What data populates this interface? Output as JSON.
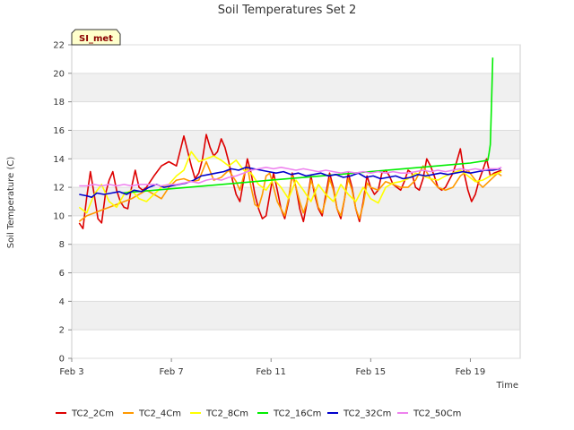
{
  "chart_data": {
    "type": "line",
    "title": "Soil Temperatures Set 2",
    "xlabel": "Time",
    "ylabel": "Soil Temperature (C)",
    "site_tag": "SI_met",
    "xlim": [
      0,
      18
    ],
    "ylim": [
      0,
      22
    ],
    "yticks": [
      0,
      2,
      4,
      6,
      8,
      10,
      12,
      14,
      16,
      18,
      20,
      22
    ],
    "xticks": [
      {
        "x": 0,
        "label": "Feb 3"
      },
      {
        "x": 4,
        "label": "Feb 7"
      },
      {
        "x": 8,
        "label": "Feb 11"
      },
      {
        "x": 12,
        "label": "Feb 15"
      },
      {
        "x": 16,
        "label": "Feb 19"
      }
    ],
    "grid": true,
    "legend_placement": "bottom",
    "series": [
      {
        "name": "TC2_2Cm",
        "color": "#dd0000",
        "x": [
          0.3,
          0.45,
          0.6,
          0.75,
          0.9,
          1.05,
          1.2,
          1.35,
          1.5,
          1.65,
          1.8,
          1.95,
          2.1,
          2.25,
          2.4,
          2.55,
          2.7,
          2.85,
          3.0,
          3.3,
          3.6,
          3.9,
          4.2,
          4.5,
          4.8,
          4.95,
          5.1,
          5.25,
          5.4,
          5.55,
          5.7,
          5.85,
          6.0,
          6.15,
          6.3,
          6.45,
          6.6,
          6.75,
          6.9,
          7.05,
          7.2,
          7.35,
          7.5,
          7.65,
          7.8,
          7.95,
          8.1,
          8.25,
          8.4,
          8.55,
          8.7,
          8.85,
          9.0,
          9.15,
          9.3,
          9.45,
          9.6,
          9.75,
          9.9,
          10.05,
          10.2,
          10.35,
          10.5,
          10.65,
          10.8,
          10.95,
          11.1,
          11.25,
          11.4,
          11.55,
          11.7,
          11.85,
          12.0,
          12.15,
          12.3,
          12.45,
          12.6,
          12.75,
          12.9,
          13.05,
          13.2,
          13.35,
          13.5,
          13.65,
          13.8,
          13.95,
          14.1,
          14.25,
          14.4,
          14.55,
          14.7,
          14.85,
          15.0,
          15.15,
          15.3,
          15.45,
          15.6,
          15.75,
          15.9,
          16.05,
          16.2,
          16.35,
          16.5,
          16.65,
          16.8,
          16.95,
          17.1,
          17.25
        ],
        "y": [
          9.5,
          9.1,
          11.3,
          13.1,
          11.5,
          9.8,
          9.5,
          11.5,
          12.5,
          13.1,
          11.8,
          11.0,
          10.6,
          10.5,
          12.0,
          13.2,
          12.0,
          11.8,
          12.0,
          12.8,
          13.5,
          13.8,
          13.5,
          15.6,
          13.5,
          12.6,
          13.0,
          14.0,
          15.7,
          14.8,
          14.2,
          14.5,
          15.4,
          14.8,
          13.8,
          12.5,
          11.5,
          11.0,
          12.5,
          14.0,
          13.0,
          11.5,
          10.5,
          9.8,
          10.0,
          11.5,
          13.0,
          11.8,
          10.5,
          9.8,
          11.0,
          13.0,
          12.0,
          10.5,
          9.6,
          11.0,
          12.8,
          11.5,
          10.5,
          10.0,
          11.5,
          13.0,
          12.0,
          10.5,
          9.8,
          11.2,
          13.0,
          12.0,
          10.5,
          9.6,
          11.0,
          12.8,
          12.0,
          11.5,
          11.8,
          13.0,
          13.2,
          12.8,
          12.2,
          12.0,
          11.8,
          12.4,
          13.2,
          13.0,
          12.0,
          11.8,
          12.6,
          14.0,
          13.5,
          12.8,
          12.0,
          11.8,
          12.0,
          12.5,
          13.0,
          13.8,
          14.7,
          13.0,
          11.8,
          11.0,
          11.5,
          12.5,
          13.2,
          14.0,
          12.8,
          13.0,
          13.1,
          13.2
        ]
      },
      {
        "name": "TC2_4Cm",
        "color": "#ff9900",
        "x": [
          0.3,
          0.6,
          0.9,
          1.2,
          1.5,
          1.8,
          2.1,
          2.4,
          2.7,
          3.0,
          3.3,
          3.6,
          3.9,
          4.2,
          4.5,
          4.8,
          5.1,
          5.4,
          5.7,
          6.0,
          6.3,
          6.6,
          6.75,
          6.9,
          7.05,
          7.2,
          7.35,
          7.5,
          7.65,
          7.8,
          7.95,
          8.1,
          8.25,
          8.4,
          8.55,
          8.7,
          8.85,
          9.0,
          9.15,
          9.3,
          9.45,
          9.6,
          9.75,
          9.9,
          10.05,
          10.2,
          10.35,
          10.5,
          10.65,
          10.8,
          10.95,
          11.1,
          11.25,
          11.4,
          11.55,
          11.7,
          11.85,
          12.0,
          12.3,
          12.6,
          12.9,
          13.2,
          13.5,
          13.8,
          14.1,
          14.4,
          14.7,
          15.0,
          15.3,
          15.6,
          15.9,
          16.2,
          16.5,
          16.8,
          17.1,
          17.25
        ],
        "y": [
          9.6,
          10.0,
          10.2,
          10.4,
          10.6,
          10.8,
          11.0,
          11.2,
          11.5,
          11.8,
          11.5,
          11.2,
          12.0,
          12.5,
          12.6,
          12.4,
          12.5,
          13.8,
          12.5,
          12.7,
          13.2,
          12.4,
          11.8,
          12.8,
          13.5,
          12.0,
          10.8,
          10.6,
          11.5,
          12.8,
          13.0,
          12.0,
          11.0,
          10.5,
          10.0,
          11.2,
          12.8,
          12.0,
          11.0,
          10.2,
          11.0,
          12.5,
          11.8,
          10.6,
          10.2,
          11.2,
          12.6,
          11.8,
          10.5,
          10.0,
          11.2,
          12.6,
          11.8,
          10.5,
          9.8,
          10.8,
          12.3,
          12.0,
          11.8,
          12.4,
          12.2,
          12.0,
          12.0,
          12.5,
          13.5,
          12.6,
          12.0,
          11.8,
          12.0,
          12.8,
          13.2,
          12.5,
          12.0,
          12.5,
          13.0,
          12.8
        ]
      },
      {
        "name": "TC2_8Cm",
        "color": "#ffff00",
        "x": [
          0.3,
          0.6,
          0.9,
          1.2,
          1.5,
          1.8,
          2.1,
          2.4,
          2.7,
          3.0,
          3.3,
          3.6,
          3.9,
          4.2,
          4.5,
          4.8,
          5.1,
          5.4,
          5.7,
          6.0,
          6.3,
          6.6,
          6.9,
          7.2,
          7.5,
          7.8,
          8.1,
          8.4,
          8.7,
          9.0,
          9.3,
          9.6,
          9.9,
          10.2,
          10.5,
          10.8,
          11.1,
          11.4,
          11.7,
          12.0,
          12.3,
          12.6,
          12.9,
          13.2,
          13.5,
          13.8,
          14.1,
          14.4,
          14.7,
          15.0,
          15.3,
          15.6,
          15.9,
          16.2,
          16.5,
          16.8,
          17.1,
          17.25
        ],
        "y": [
          10.6,
          10.2,
          11.5,
          12.2,
          11.0,
          10.6,
          11.5,
          11.8,
          11.2,
          11.0,
          11.5,
          12.0,
          12.2,
          12.8,
          13.2,
          14.5,
          13.8,
          14.0,
          14.2,
          13.9,
          13.5,
          13.9,
          13.2,
          13.0,
          12.2,
          11.8,
          12.6,
          12.0,
          11.2,
          12.5,
          11.8,
          11.0,
          12.2,
          11.5,
          11.0,
          12.2,
          11.5,
          11.0,
          12.0,
          11.2,
          10.9,
          12.0,
          12.3,
          12.4,
          12.6,
          13.0,
          12.8,
          12.6,
          12.5,
          12.8,
          13.0,
          13.2,
          12.8,
          12.4,
          12.5,
          12.8,
          13.0,
          13.1
        ]
      },
      {
        "name": "TC2_16Cm",
        "color": "#00ee00",
        "x": [
          2.0,
          4.0,
          6.0,
          8.0,
          10.0,
          12.0,
          14.0,
          16.0,
          16.7,
          16.75,
          16.8,
          16.85,
          16.9
        ],
        "y": [
          11.6,
          11.9,
          12.2,
          12.5,
          12.8,
          13.1,
          13.4,
          13.7,
          13.9,
          14.4,
          15.0,
          18.0,
          21.1
        ]
      },
      {
        "name": "TC2_32Cm",
        "color": "#0000cc",
        "x": [
          0.3,
          0.6,
          0.8,
          1.0,
          1.3,
          1.6,
          1.9,
          2.2,
          2.5,
          2.8,
          3.1,
          3.4,
          3.7,
          4.0,
          4.3,
          4.6,
          4.9,
          5.2,
          5.5,
          5.8,
          6.1,
          6.4,
          6.7,
          7.0,
          7.3,
          7.6,
          7.9,
          8.2,
          8.5,
          8.8,
          9.1,
          9.4,
          9.7,
          10.0,
          10.3,
          10.6,
          10.9,
          11.2,
          11.5,
          11.8,
          12.1,
          12.4,
          12.7,
          13.0,
          13.3,
          13.6,
          13.9,
          14.2,
          14.5,
          14.8,
          15.1,
          15.4,
          15.7,
          16.0,
          16.3,
          16.6,
          16.9,
          17.2
        ],
        "y": [
          11.5,
          11.4,
          11.3,
          11.6,
          11.5,
          11.6,
          11.7,
          11.5,
          11.8,
          11.7,
          12.0,
          12.2,
          12.0,
          12.1,
          12.2,
          12.3,
          12.5,
          12.8,
          12.9,
          13.0,
          13.1,
          13.3,
          13.2,
          13.4,
          13.3,
          13.2,
          13.1,
          13.0,
          13.1,
          12.9,
          13.0,
          12.8,
          12.9,
          13.0,
          12.8,
          12.9,
          12.7,
          12.8,
          13.0,
          12.7,
          12.8,
          12.6,
          12.7,
          12.8,
          12.6,
          12.7,
          12.9,
          12.8,
          12.9,
          13.0,
          12.9,
          13.0,
          13.1,
          13.0,
          13.1,
          13.2,
          13.2,
          13.3
        ]
      },
      {
        "name": "TC2_50Cm",
        "color": "#ee82ee",
        "x": [
          0.3,
          0.6,
          0.9,
          1.2,
          1.5,
          1.8,
          2.1,
          2.4,
          2.7,
          3.0,
          3.3,
          3.6,
          3.9,
          4.2,
          4.5,
          4.8,
          5.1,
          5.4,
          5.7,
          6.0,
          6.3,
          6.6,
          6.9,
          7.2,
          7.5,
          7.8,
          8.1,
          8.4,
          8.7,
          9.0,
          9.3,
          9.6,
          9.9,
          10.2,
          10.5,
          10.8,
          11.1,
          11.4,
          11.7,
          12.0,
          12.3,
          12.6,
          12.9,
          13.2,
          13.5,
          13.8,
          14.1,
          14.4,
          14.7,
          15.0,
          15.3,
          15.6,
          15.9,
          16.2,
          16.5,
          16.8,
          17.1,
          17.25
        ],
        "y": [
          12.1,
          12.1,
          12.2,
          12.1,
          12.2,
          12.1,
          12.2,
          12.1,
          12.2,
          12.2,
          12.2,
          12.1,
          12.2,
          12.2,
          12.3,
          12.4,
          12.3,
          12.5,
          12.6,
          12.5,
          12.7,
          12.8,
          13.0,
          13.2,
          13.3,
          13.4,
          13.3,
          13.4,
          13.3,
          13.2,
          13.3,
          13.2,
          13.1,
          13.2,
          13.1,
          13.0,
          13.1,
          13.0,
          13.1,
          13.0,
          13.1,
          13.0,
          13.1,
          13.0,
          13.0,
          13.1,
          13.2,
          13.1,
          13.2,
          13.1,
          13.2,
          13.3,
          13.2,
          13.3,
          13.2,
          13.3,
          13.3,
          13.4
        ]
      }
    ]
  }
}
